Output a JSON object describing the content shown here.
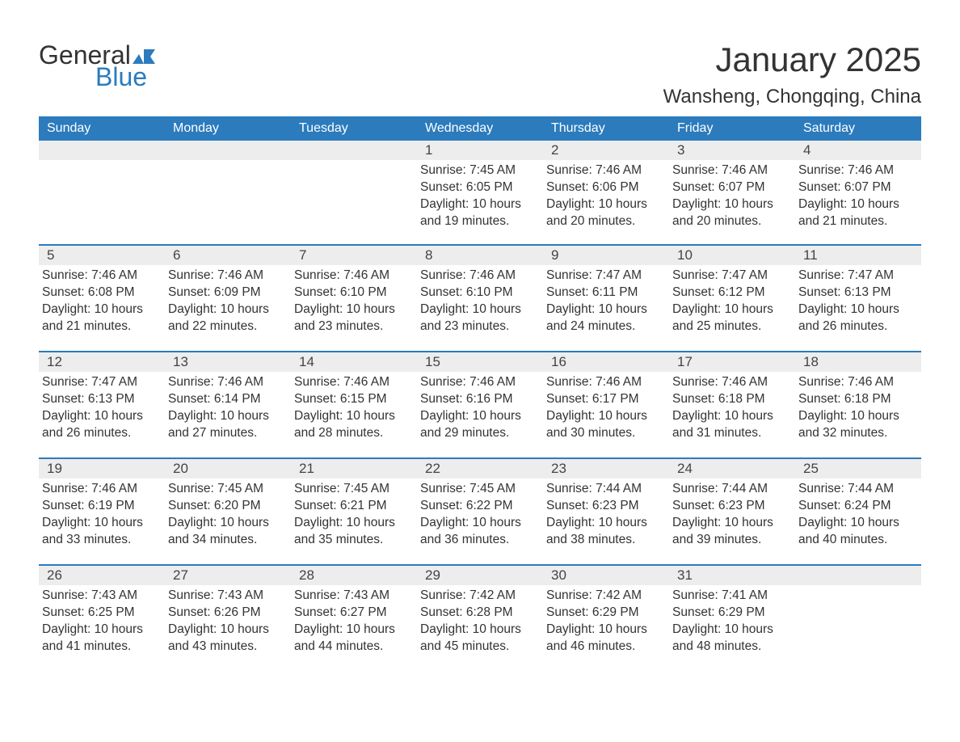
{
  "logo": {
    "text_general": "General",
    "text_blue": "Blue",
    "accent_color": "#2b7bbd"
  },
  "title": "January 2025",
  "location": "Wansheng, Chongqing, China",
  "colors": {
    "header_bg": "#2b7bbd",
    "header_text": "#ffffff",
    "daynum_bg": "#ededed",
    "text": "#333333",
    "border": "#2b7bbd"
  },
  "typography": {
    "title_fontsize": 42,
    "location_fontsize": 24,
    "header_fontsize": 16,
    "daynum_fontsize": 17,
    "detail_fontsize": 15.5
  },
  "day_headers": [
    "Sunday",
    "Monday",
    "Tuesday",
    "Wednesday",
    "Thursday",
    "Friday",
    "Saturday"
  ],
  "weeks": [
    {
      "days": [
        {
          "num": "",
          "sunrise": "",
          "sunset": "",
          "daylight": ""
        },
        {
          "num": "",
          "sunrise": "",
          "sunset": "",
          "daylight": ""
        },
        {
          "num": "",
          "sunrise": "",
          "sunset": "",
          "daylight": ""
        },
        {
          "num": "1",
          "sunrise": "Sunrise: 7:45 AM",
          "sunset": "Sunset: 6:05 PM",
          "daylight": "Daylight: 10 hours and 19 minutes."
        },
        {
          "num": "2",
          "sunrise": "Sunrise: 7:46 AM",
          "sunset": "Sunset: 6:06 PM",
          "daylight": "Daylight: 10 hours and 20 minutes."
        },
        {
          "num": "3",
          "sunrise": "Sunrise: 7:46 AM",
          "sunset": "Sunset: 6:07 PM",
          "daylight": "Daylight: 10 hours and 20 minutes."
        },
        {
          "num": "4",
          "sunrise": "Sunrise: 7:46 AM",
          "sunset": "Sunset: 6:07 PM",
          "daylight": "Daylight: 10 hours and 21 minutes."
        }
      ]
    },
    {
      "days": [
        {
          "num": "5",
          "sunrise": "Sunrise: 7:46 AM",
          "sunset": "Sunset: 6:08 PM",
          "daylight": "Daylight: 10 hours and 21 minutes."
        },
        {
          "num": "6",
          "sunrise": "Sunrise: 7:46 AM",
          "sunset": "Sunset: 6:09 PM",
          "daylight": "Daylight: 10 hours and 22 minutes."
        },
        {
          "num": "7",
          "sunrise": "Sunrise: 7:46 AM",
          "sunset": "Sunset: 6:10 PM",
          "daylight": "Daylight: 10 hours and 23 minutes."
        },
        {
          "num": "8",
          "sunrise": "Sunrise: 7:46 AM",
          "sunset": "Sunset: 6:10 PM",
          "daylight": "Daylight: 10 hours and 23 minutes."
        },
        {
          "num": "9",
          "sunrise": "Sunrise: 7:47 AM",
          "sunset": "Sunset: 6:11 PM",
          "daylight": "Daylight: 10 hours and 24 minutes."
        },
        {
          "num": "10",
          "sunrise": "Sunrise: 7:47 AM",
          "sunset": "Sunset: 6:12 PM",
          "daylight": "Daylight: 10 hours and 25 minutes."
        },
        {
          "num": "11",
          "sunrise": "Sunrise: 7:47 AM",
          "sunset": "Sunset: 6:13 PM",
          "daylight": "Daylight: 10 hours and 26 minutes."
        }
      ]
    },
    {
      "days": [
        {
          "num": "12",
          "sunrise": "Sunrise: 7:47 AM",
          "sunset": "Sunset: 6:13 PM",
          "daylight": "Daylight: 10 hours and 26 minutes."
        },
        {
          "num": "13",
          "sunrise": "Sunrise: 7:46 AM",
          "sunset": "Sunset: 6:14 PM",
          "daylight": "Daylight: 10 hours and 27 minutes."
        },
        {
          "num": "14",
          "sunrise": "Sunrise: 7:46 AM",
          "sunset": "Sunset: 6:15 PM",
          "daylight": "Daylight: 10 hours and 28 minutes."
        },
        {
          "num": "15",
          "sunrise": "Sunrise: 7:46 AM",
          "sunset": "Sunset: 6:16 PM",
          "daylight": "Daylight: 10 hours and 29 minutes."
        },
        {
          "num": "16",
          "sunrise": "Sunrise: 7:46 AM",
          "sunset": "Sunset: 6:17 PM",
          "daylight": "Daylight: 10 hours and 30 minutes."
        },
        {
          "num": "17",
          "sunrise": "Sunrise: 7:46 AM",
          "sunset": "Sunset: 6:18 PM",
          "daylight": "Daylight: 10 hours and 31 minutes."
        },
        {
          "num": "18",
          "sunrise": "Sunrise: 7:46 AM",
          "sunset": "Sunset: 6:18 PM",
          "daylight": "Daylight: 10 hours and 32 minutes."
        }
      ]
    },
    {
      "days": [
        {
          "num": "19",
          "sunrise": "Sunrise: 7:46 AM",
          "sunset": "Sunset: 6:19 PM",
          "daylight": "Daylight: 10 hours and 33 minutes."
        },
        {
          "num": "20",
          "sunrise": "Sunrise: 7:45 AM",
          "sunset": "Sunset: 6:20 PM",
          "daylight": "Daylight: 10 hours and 34 minutes."
        },
        {
          "num": "21",
          "sunrise": "Sunrise: 7:45 AM",
          "sunset": "Sunset: 6:21 PM",
          "daylight": "Daylight: 10 hours and 35 minutes."
        },
        {
          "num": "22",
          "sunrise": "Sunrise: 7:45 AM",
          "sunset": "Sunset: 6:22 PM",
          "daylight": "Daylight: 10 hours and 36 minutes."
        },
        {
          "num": "23",
          "sunrise": "Sunrise: 7:44 AM",
          "sunset": "Sunset: 6:23 PM",
          "daylight": "Daylight: 10 hours and 38 minutes."
        },
        {
          "num": "24",
          "sunrise": "Sunrise: 7:44 AM",
          "sunset": "Sunset: 6:23 PM",
          "daylight": "Daylight: 10 hours and 39 minutes."
        },
        {
          "num": "25",
          "sunrise": "Sunrise: 7:44 AM",
          "sunset": "Sunset: 6:24 PM",
          "daylight": "Daylight: 10 hours and 40 minutes."
        }
      ]
    },
    {
      "days": [
        {
          "num": "26",
          "sunrise": "Sunrise: 7:43 AM",
          "sunset": "Sunset: 6:25 PM",
          "daylight": "Daylight: 10 hours and 41 minutes."
        },
        {
          "num": "27",
          "sunrise": "Sunrise: 7:43 AM",
          "sunset": "Sunset: 6:26 PM",
          "daylight": "Daylight: 10 hours and 43 minutes."
        },
        {
          "num": "28",
          "sunrise": "Sunrise: 7:43 AM",
          "sunset": "Sunset: 6:27 PM",
          "daylight": "Daylight: 10 hours and 44 minutes."
        },
        {
          "num": "29",
          "sunrise": "Sunrise: 7:42 AM",
          "sunset": "Sunset: 6:28 PM",
          "daylight": "Daylight: 10 hours and 45 minutes."
        },
        {
          "num": "30",
          "sunrise": "Sunrise: 7:42 AM",
          "sunset": "Sunset: 6:29 PM",
          "daylight": "Daylight: 10 hours and 46 minutes."
        },
        {
          "num": "31",
          "sunrise": "Sunrise: 7:41 AM",
          "sunset": "Sunset: 6:29 PM",
          "daylight": "Daylight: 10 hours and 48 minutes."
        },
        {
          "num": "",
          "sunrise": "",
          "sunset": "",
          "daylight": ""
        }
      ]
    }
  ]
}
